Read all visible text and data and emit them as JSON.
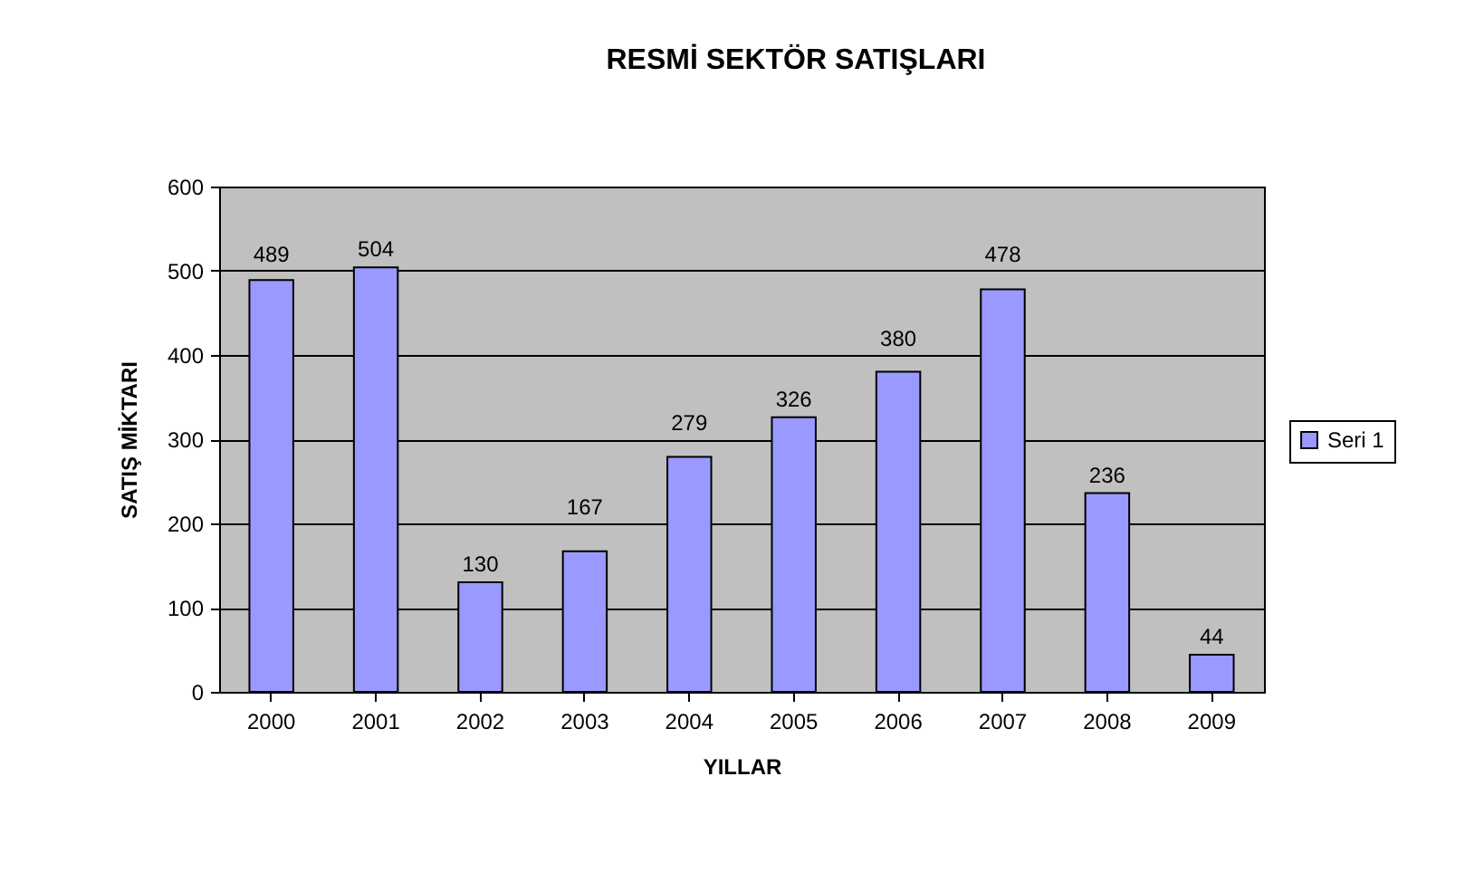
{
  "chart_data": {
    "type": "bar",
    "title": "RESMİ SEKTÖR SATIŞLARI",
    "xlabel": "YILLAR",
    "ylabel": "SATIŞ MİKTARI",
    "categories": [
      "2000",
      "2001",
      "2002",
      "2003",
      "2004",
      "2005",
      "2006",
      "2007",
      "2008",
      "2009"
    ],
    "series": [
      {
        "name": "Seri 1",
        "color": "#9999ff",
        "values": [
          489,
          504,
          130,
          167,
          279,
          326,
          380,
          478,
          236,
          44
        ]
      }
    ],
    "ylim": [
      0,
      600
    ],
    "yticks": [
      0,
      100,
      200,
      300,
      400,
      500,
      600
    ],
    "grid": "y",
    "legend": "right",
    "data_labels": true
  }
}
